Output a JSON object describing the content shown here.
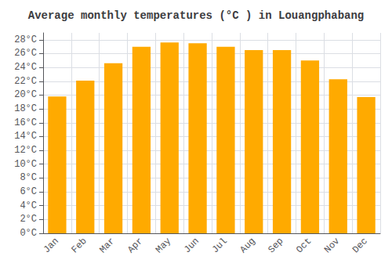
{
  "chart_data": {
    "type": "bar",
    "title": "Average monthly temperatures (°C ) in Louangphabang",
    "categories": [
      "Jan",
      "Feb",
      "Mar",
      "Apr",
      "May",
      "Jun",
      "Jul",
      "Aug",
      "Sep",
      "Oct",
      "Nov",
      "Dec"
    ],
    "values": [
      19.8,
      22.1,
      24.6,
      27.0,
      27.6,
      27.5,
      27.0,
      26.5,
      26.5,
      25.0,
      22.3,
      19.7
    ],
    "color": "#FFAA00",
    "ylim": [
      0,
      29
    ],
    "yticks": [
      {
        "value": 0,
        "label": "0°C"
      },
      {
        "value": 2,
        "label": "2°C"
      },
      {
        "value": 4,
        "label": "4°C"
      },
      {
        "value": 6,
        "label": "6°C"
      },
      {
        "value": 8,
        "label": "8°C"
      },
      {
        "value": 10,
        "label": "10°C"
      },
      {
        "value": 12,
        "label": "12°C"
      },
      {
        "value": 14,
        "label": "14°C"
      },
      {
        "value": 16,
        "label": "16°C"
      },
      {
        "value": 18,
        "label": "18°C"
      },
      {
        "value": 20,
        "label": "20°C"
      },
      {
        "value": 22,
        "label": "22°C"
      },
      {
        "value": 24,
        "label": "24°C"
      },
      {
        "value": 26,
        "label": "26°C"
      },
      {
        "value": 28,
        "label": "28°C"
      }
    ],
    "grid": true
  }
}
